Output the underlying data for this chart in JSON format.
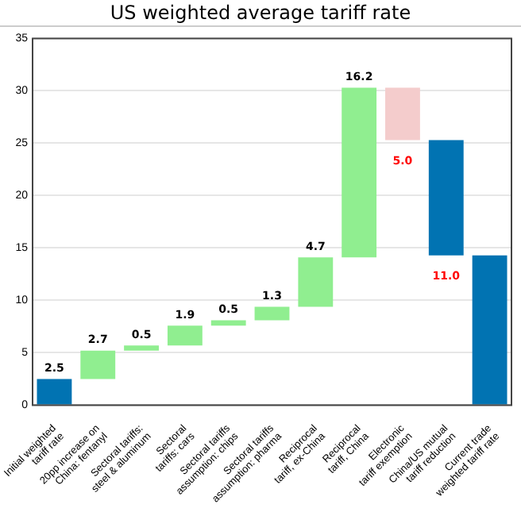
{
  "chart_data": {
    "type": "bar",
    "title": "US weighted average tariff rate",
    "categories": [
      "Initial weighted tariff rate",
      "20pp increase on China: fentanyl",
      "Sectoral tariffs: steel & aluminum",
      "Sectoral tariffs: cars",
      "Sectoral tariffs assumption: chips",
      "Sectoral tariffs assumption: pharma",
      "Reciprocal tariff, ex-China",
      "Reciprocal tariff, China",
      "Electronic tariff exemption",
      "China/US mutual tariff reduction",
      "Current trade weighted tariff rate"
    ],
    "values": [
      2.5,
      2.7,
      0.5,
      1.9,
      0.5,
      1.3,
      4.7,
      16.2,
      -5.0,
      -11.0,
      14.3
    ],
    "base": [
      0,
      2.5,
      5.2,
      5.7,
      7.6,
      8.1,
      9.4,
      14.1,
      30.3,
      25.3,
      0
    ],
    "colors": [
      "#0173b2",
      "#90ee90",
      "#90ee90",
      "#90ee90",
      "#90ee90",
      "#90ee90",
      "#90ee90",
      "#90ee90",
      "#f4cccc",
      "#0173b2",
      "#0173b2"
    ],
    "value_labels": [
      "2.5",
      "2.7",
      "0.5",
      "1.9",
      "0.5",
      "1.3",
      "4.7",
      "16.2",
      "5.0",
      "11.0",
      null
    ],
    "relative": false,
    "ylim": [
      0,
      35
    ],
    "yticks": [
      0,
      5,
      10,
      15,
      20,
      25,
      30,
      35
    ],
    "grid": "y",
    "legend": false
  }
}
